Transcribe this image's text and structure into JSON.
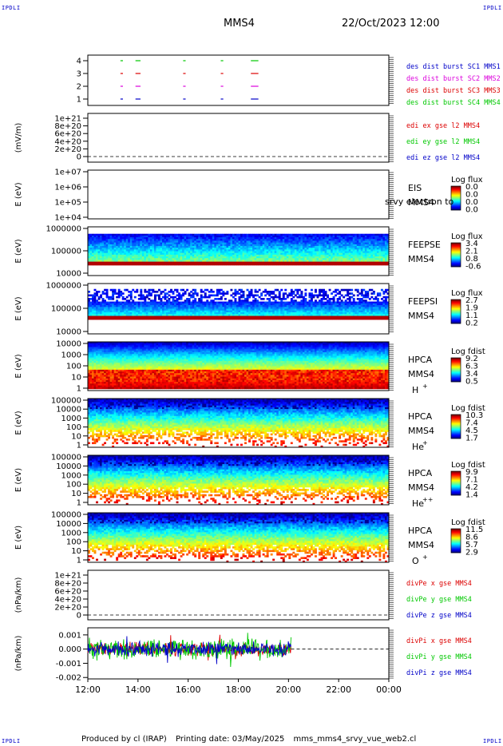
{
  "corner_label": "IPDLI",
  "header": {
    "spacecraft": "MMS4",
    "datetime": "22/Oct/2023 12:00"
  },
  "footer": {
    "produced_by": "Produced by cl (IRAP)",
    "printing_date": "Printing date: 03/May/2025",
    "script_name": "mms_mms4_srvy_vue_web2.cl"
  },
  "colors": {
    "blue": "#0000c8",
    "magenta": "#dc00dc",
    "red": "#dc0000",
    "green": "#00c800"
  },
  "chart_data": [
    {
      "type": "line",
      "panel": "burst-flags",
      "ylabel": "",
      "yticks": [
        "1",
        "2",
        "3",
        "4"
      ],
      "ylim": [
        0.5,
        4.5
      ],
      "legend": [
        "des dist burst SC1 MMS1",
        "des dist burst SC2 MMS2",
        "des dist burst SC3 MMS3",
        "des dist burst SC4 MMS4"
      ],
      "segments_hours": [
        [
          13.3,
          13.4
        ],
        [
          13.9,
          14.1
        ],
        [
          15.8,
          15.9
        ],
        [
          17.3,
          17.4
        ],
        [
          18.5,
          18.8
        ]
      ]
    },
    {
      "type": "line",
      "panel": "edi-e",
      "ylabel": "(mV/m)",
      "yticks": [
        "0",
        "2e+20",
        "4e+20",
        "6e+20",
        "8e+20",
        "1e+21"
      ],
      "ylim": [
        0,
        1e+21
      ],
      "legend": [
        "edi ex gse l2 MMS4",
        "edi ey gse l2 MMS4",
        "edi ez gse l2 MMS4"
      ]
    },
    {
      "type": "heatmap",
      "panel": "eis",
      "ylabel": "E (eV)",
      "yticks": [
        "1e+04",
        "1e+05",
        "1e+06",
        "1e+07"
      ],
      "scale": "log",
      "labels": [
        "EIS",
        "MMS4"
      ],
      "overlay": "srvy electron to",
      "cbar_title": "Log flux",
      "cbar_ticks": [
        "0.0",
        "0.0",
        "0.0",
        "0.0"
      ]
    },
    {
      "type": "heatmap",
      "panel": "feepse",
      "ylabel": "E (eV)",
      "yticks": [
        "10000",
        "100000",
        "1000000"
      ],
      "scale": "log",
      "labels": [
        "FEEPSE",
        "MMS4"
      ],
      "cbar_title": "Log flux",
      "cbar_ticks": [
        "3.4",
        "2.1",
        "0.8",
        "-0.6"
      ]
    },
    {
      "type": "heatmap",
      "panel": "feepsi",
      "ylabel": "E (eV)",
      "yticks": [
        "10000",
        "100000",
        "1000000"
      ],
      "scale": "log",
      "labels": [
        "FEEPSI",
        "MMS4"
      ],
      "cbar_title": "Log flux",
      "cbar_ticks": [
        "2.7",
        "1.9",
        "1.1",
        "0.2"
      ]
    },
    {
      "type": "heatmap",
      "panel": "hpca-h",
      "ylabel": "E (eV)",
      "yticks": [
        "1",
        "10",
        "100",
        "1000",
        "10000"
      ],
      "scale": "log",
      "labels": [
        "HPCA",
        "MMS4"
      ],
      "species": "H",
      "charge": "+",
      "cbar_title": "Log fdist",
      "cbar_ticks": [
        "9.2",
        "6.3",
        "3.4",
        "0.5"
      ]
    },
    {
      "type": "heatmap",
      "panel": "hpca-he",
      "ylabel": "E (eV)",
      "yticks": [
        "1",
        "10",
        "100",
        "1000",
        "10000",
        "100000"
      ],
      "scale": "log",
      "labels": [
        "HPCA",
        "MMS4"
      ],
      "species": "He",
      "charge": "+",
      "cbar_title": "Log fdist",
      "cbar_ticks": [
        "10.3",
        "7.4",
        "4.5",
        "1.7"
      ]
    },
    {
      "type": "heatmap",
      "panel": "hpca-he2",
      "ylabel": "E (eV)",
      "yticks": [
        "1",
        "10",
        "100",
        "1000",
        "10000",
        "100000"
      ],
      "scale": "log",
      "labels": [
        "HPCA",
        "MMS4"
      ],
      "species": "He",
      "charge": "++",
      "cbar_title": "Log fdist",
      "cbar_ticks": [
        "9.9",
        "7.1",
        "4.2",
        "1.4"
      ]
    },
    {
      "type": "heatmap",
      "panel": "hpca-o",
      "ylabel": "E (eV)",
      "yticks": [
        "1",
        "10",
        "100",
        "1000",
        "10000",
        "100000"
      ],
      "scale": "log",
      "labels": [
        "HPCA",
        "MMS4"
      ],
      "species": "O",
      "charge": "+",
      "cbar_title": "Log fdist",
      "cbar_ticks": [
        "11.5",
        "8.6",
        "5.7",
        "2.9"
      ]
    },
    {
      "type": "line",
      "panel": "divpe",
      "ylabel": "(nPa/km)",
      "yticks": [
        "0",
        "2e+20",
        "4e+20",
        "6e+20",
        "8e+20",
        "1e+21"
      ],
      "ylim": [
        0,
        1e+21
      ],
      "legend": [
        "divPe x gse MMS4",
        "divPe y gse MMS4",
        "divPe z gse MMS4"
      ]
    },
    {
      "type": "line",
      "panel": "divpi",
      "ylabel": "(nPa/km)",
      "yticks": [
        "-0.002",
        "-0.001",
        "0.000",
        "0.001"
      ],
      "ylim": [
        -0.0021,
        0.0015
      ],
      "legend": [
        "divPi x gse MMS4",
        "divPi y gse MMS4",
        "divPi z gse MMS4"
      ],
      "data_end_hour": 20.1
    }
  ],
  "xaxis": {
    "ticks": [
      "12:00",
      "14:00",
      "16:00",
      "18:00",
      "20:00",
      "22:00",
      "00:00"
    ],
    "range_hours": [
      12,
      24
    ]
  }
}
